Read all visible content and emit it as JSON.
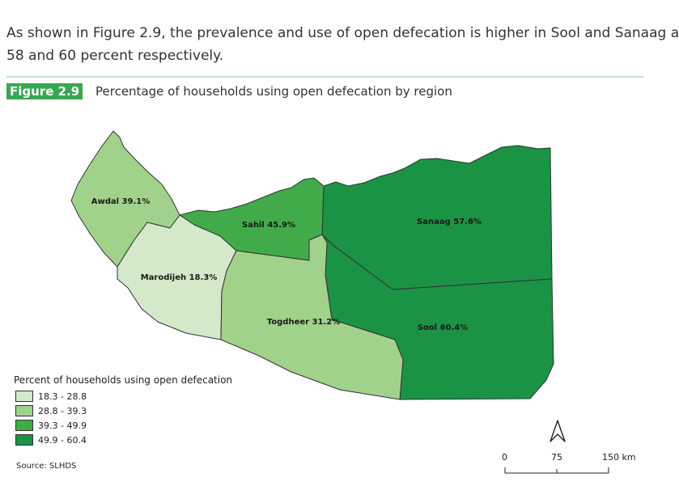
{
  "intro": {
    "line1": "As shown in Figure 2.9, the prevalence and use of open defecation is higher in Sool and Sanaag a",
    "line2": "58 and 60 percent respectively."
  },
  "figure": {
    "tag": "Figure 2.9",
    "title": "Percentage of households using open defecation by region"
  },
  "regions": {
    "awdal": {
      "label": "Awdal 39.1%",
      "value": 39.1,
      "color": "#a1d28b"
    },
    "sahil": {
      "label": "Sahil 45.9%",
      "value": 45.9,
      "color": "#41ab4a"
    },
    "marodijeh": {
      "label": "Marodijeh 18.3%",
      "value": 18.3,
      "color": "#d3e9c9"
    },
    "togdheer": {
      "label": "Togdheer 31.2%",
      "value": 31.2,
      "color": "#a1d28b"
    },
    "sanaag": {
      "label": "Sanaag 57.6%",
      "value": 57.6,
      "color": "#1a9345"
    },
    "sool": {
      "label": "Sool 60.4%",
      "value": 60.4,
      "color": "#1a9345"
    }
  },
  "legend": {
    "title": "Percent of households using open defecation",
    "items": [
      {
        "label": "18.3 - 28.8",
        "color": "#d3e9c9"
      },
      {
        "label": "28.8 - 39.3",
        "color": "#a1d28b"
      },
      {
        "label": "39.3 - 49.9",
        "color": "#41ab4a"
      },
      {
        "label": "49.9 - 60.4",
        "color": "#1a9345"
      }
    ]
  },
  "source": "Source: SLHDS",
  "scale": {
    "labels": [
      "0",
      "75",
      "150 km"
    ]
  },
  "north_arrow": "north-arrow-icon"
}
